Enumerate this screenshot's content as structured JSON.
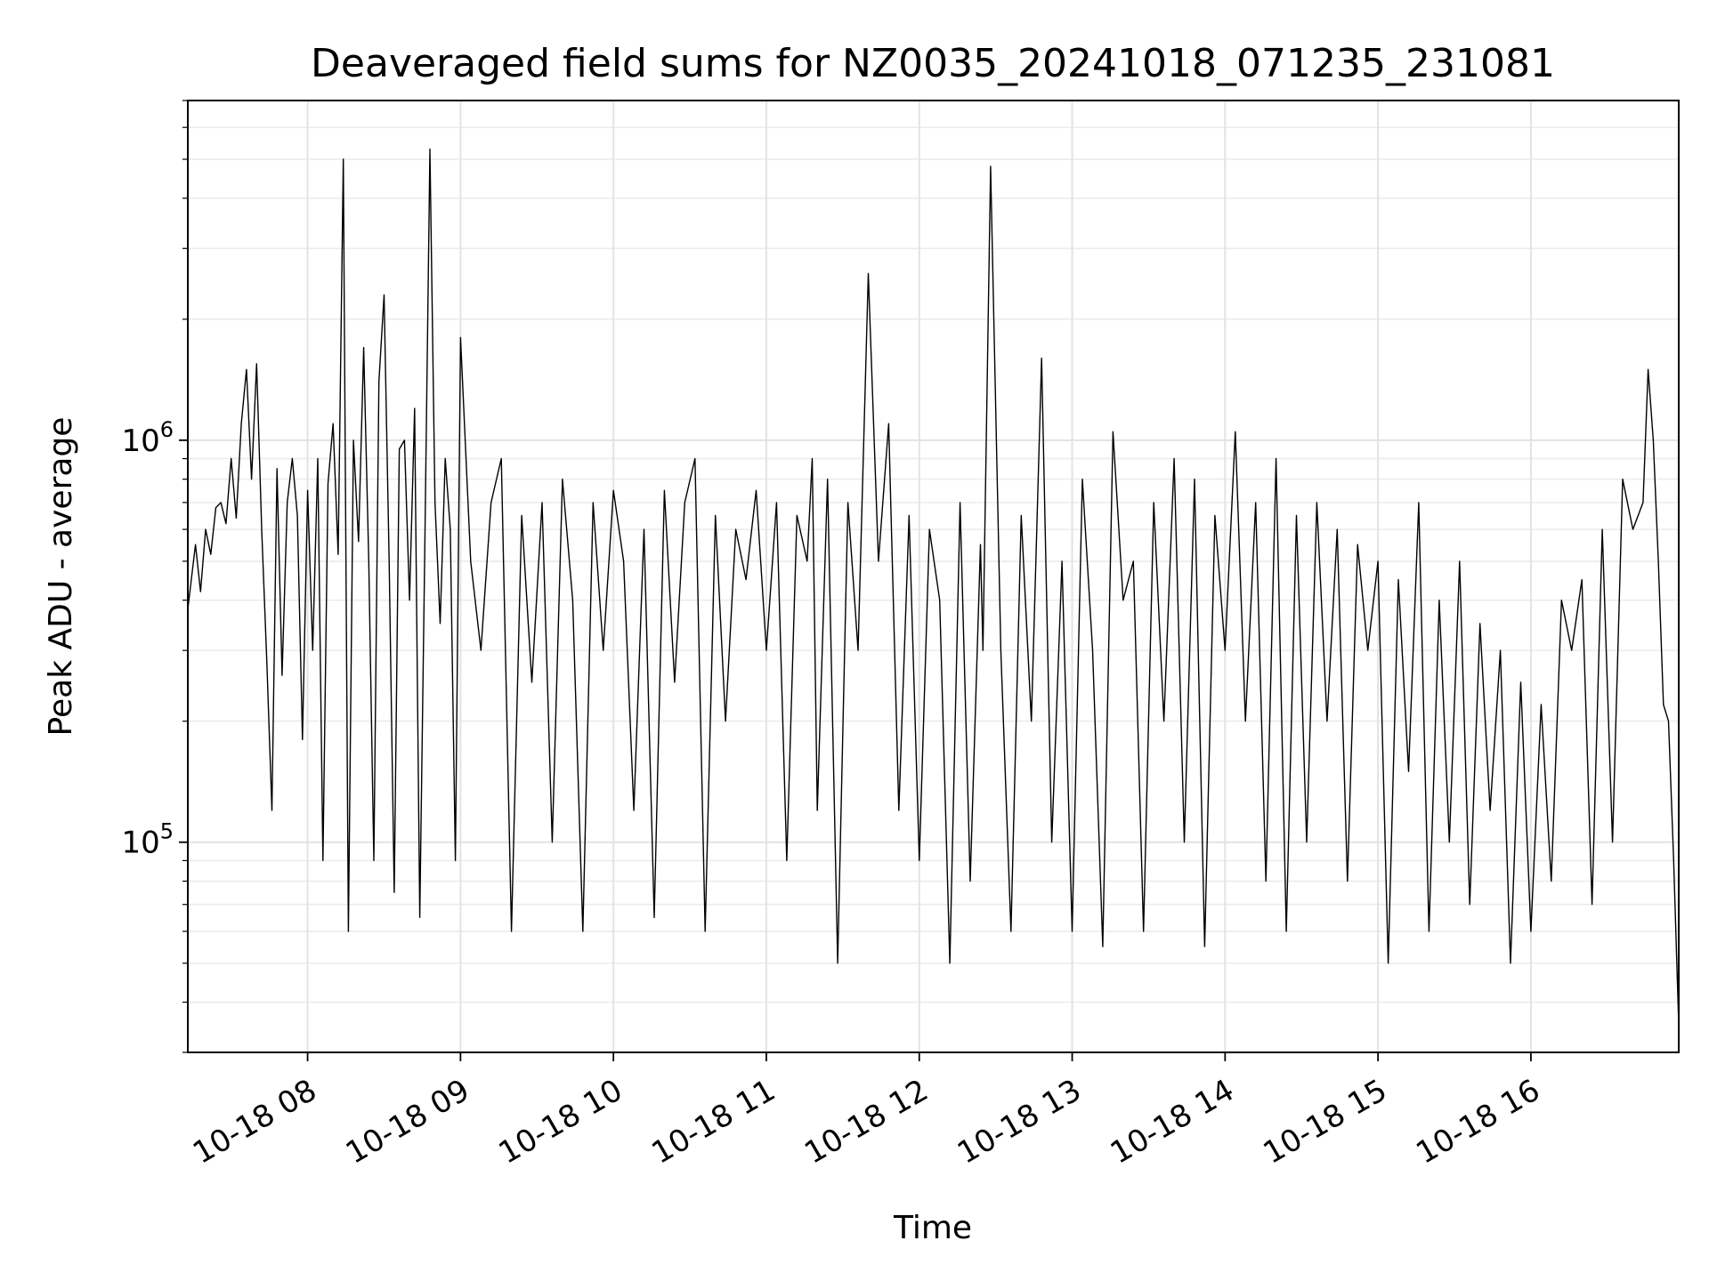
{
  "chart_data": {
    "type": "line",
    "title": "Deaveraged field sums for NZ0035_20241018_071235_231081",
    "xlabel": "Time",
    "ylabel": "Peak ADU - average",
    "yscale": "log",
    "xlim": [
      "2024-10-18T07:13",
      "2024-10-18T16:58"
    ],
    "ylim": [
      30000,
      7000000
    ],
    "grid": true,
    "x_ticks": [
      {
        "value": "2024-10-18T08:00",
        "label": "10-18 08"
      },
      {
        "value": "2024-10-18T09:00",
        "label": "10-18 09"
      },
      {
        "value": "2024-10-18T10:00",
        "label": "10-18 10"
      },
      {
        "value": "2024-10-18T11:00",
        "label": "10-18 11"
      },
      {
        "value": "2024-10-18T12:00",
        "label": "10-18 12"
      },
      {
        "value": "2024-10-18T13:00",
        "label": "10-18 13"
      },
      {
        "value": "2024-10-18T14:00",
        "label": "10-18 14"
      },
      {
        "value": "2024-10-18T15:00",
        "label": "10-18 15"
      },
      {
        "value": "2024-10-18T16:00",
        "label": "10-18 16"
      }
    ],
    "y_ticks": [
      {
        "value": 100000,
        "base": "10",
        "exp": "5"
      },
      {
        "value": 1000000,
        "base": "10",
        "exp": "6"
      }
    ],
    "line_color": "#000000",
    "series": [
      {
        "x": [
          "2024-10-18T07:13",
          "2024-10-18T07:16",
          "2024-10-18T07:18",
          "2024-10-18T07:20",
          "2024-10-18T07:22",
          "2024-10-18T07:24",
          "2024-10-18T07:26",
          "2024-10-18T07:28",
          "2024-10-18T07:30",
          "2024-10-18T07:32",
          "2024-10-18T07:34",
          "2024-10-18T07:36",
          "2024-10-18T07:38",
          "2024-10-18T07:40",
          "2024-10-18T07:42",
          "2024-10-18T07:44",
          "2024-10-18T07:46",
          "2024-10-18T07:48",
          "2024-10-18T07:50",
          "2024-10-18T07:52",
          "2024-10-18T07:54",
          "2024-10-18T07:56",
          "2024-10-18T07:58",
          "2024-10-18T08:00",
          "2024-10-18T08:02",
          "2024-10-18T08:04",
          "2024-10-18T08:06",
          "2024-10-18T08:08",
          "2024-10-18T08:10",
          "2024-10-18T08:12",
          "2024-10-18T08:14",
          "2024-10-18T08:16",
          "2024-10-18T08:18",
          "2024-10-18T08:20",
          "2024-10-18T08:22",
          "2024-10-18T08:24",
          "2024-10-18T08:26",
          "2024-10-18T08:28",
          "2024-10-18T08:30",
          "2024-10-18T08:32",
          "2024-10-18T08:34",
          "2024-10-18T08:36",
          "2024-10-18T08:38",
          "2024-10-18T08:40",
          "2024-10-18T08:42",
          "2024-10-18T08:44",
          "2024-10-18T08:46",
          "2024-10-18T08:48",
          "2024-10-18T08:50",
          "2024-10-18T08:52",
          "2024-10-18T08:54",
          "2024-10-18T08:56",
          "2024-10-18T08:58",
          "2024-10-18T09:00",
          "2024-10-18T09:04",
          "2024-10-18T09:08",
          "2024-10-18T09:12",
          "2024-10-18T09:16",
          "2024-10-18T09:20",
          "2024-10-18T09:24",
          "2024-10-18T09:28",
          "2024-10-18T09:32",
          "2024-10-18T09:36",
          "2024-10-18T09:40",
          "2024-10-18T09:44",
          "2024-10-18T09:48",
          "2024-10-18T09:52",
          "2024-10-18T09:56",
          "2024-10-18T10:00",
          "2024-10-18T10:04",
          "2024-10-18T10:08",
          "2024-10-18T10:12",
          "2024-10-18T10:16",
          "2024-10-18T10:20",
          "2024-10-18T10:24",
          "2024-10-18T10:28",
          "2024-10-18T10:32",
          "2024-10-18T10:36",
          "2024-10-18T10:40",
          "2024-10-18T10:44",
          "2024-10-18T10:48",
          "2024-10-18T10:52",
          "2024-10-18T10:56",
          "2024-10-18T11:00",
          "2024-10-18T11:04",
          "2024-10-18T11:08",
          "2024-10-18T11:12",
          "2024-10-18T11:16",
          "2024-10-18T11:18",
          "2024-10-18T11:20",
          "2024-10-18T11:24",
          "2024-10-18T11:28",
          "2024-10-18T11:32",
          "2024-10-18T11:36",
          "2024-10-18T11:40",
          "2024-10-18T11:44",
          "2024-10-18T11:48",
          "2024-10-18T11:52",
          "2024-10-18T11:56",
          "2024-10-18T12:00",
          "2024-10-18T12:04",
          "2024-10-18T12:08",
          "2024-10-18T12:12",
          "2024-10-18T12:16",
          "2024-10-18T12:20",
          "2024-10-18T12:24",
          "2024-10-18T12:25",
          "2024-10-18T12:28",
          "2024-10-18T12:32",
          "2024-10-18T12:36",
          "2024-10-18T12:40",
          "2024-10-18T12:44",
          "2024-10-18T12:48",
          "2024-10-18T12:52",
          "2024-10-18T12:56",
          "2024-10-18T13:00",
          "2024-10-18T13:04",
          "2024-10-18T13:08",
          "2024-10-18T13:12",
          "2024-10-18T13:16",
          "2024-10-18T13:20",
          "2024-10-18T13:24",
          "2024-10-18T13:28",
          "2024-10-18T13:32",
          "2024-10-18T13:36",
          "2024-10-18T13:40",
          "2024-10-18T13:44",
          "2024-10-18T13:48",
          "2024-10-18T13:52",
          "2024-10-18T13:56",
          "2024-10-18T14:00",
          "2024-10-18T14:04",
          "2024-10-18T14:08",
          "2024-10-18T14:12",
          "2024-10-18T14:16",
          "2024-10-18T14:20",
          "2024-10-18T14:24",
          "2024-10-18T14:28",
          "2024-10-18T14:32",
          "2024-10-18T14:36",
          "2024-10-18T14:40",
          "2024-10-18T14:44",
          "2024-10-18T14:48",
          "2024-10-18T14:52",
          "2024-10-18T14:56",
          "2024-10-18T15:00",
          "2024-10-18T15:04",
          "2024-10-18T15:08",
          "2024-10-18T15:12",
          "2024-10-18T15:16",
          "2024-10-18T15:20",
          "2024-10-18T15:24",
          "2024-10-18T15:28",
          "2024-10-18T15:32",
          "2024-10-18T15:36",
          "2024-10-18T15:40",
          "2024-10-18T15:44",
          "2024-10-18T15:48",
          "2024-10-18T15:52",
          "2024-10-18T15:56",
          "2024-10-18T16:00",
          "2024-10-18T16:04",
          "2024-10-18T16:08",
          "2024-10-18T16:12",
          "2024-10-18T16:16",
          "2024-10-18T16:20",
          "2024-10-18T16:24",
          "2024-10-18T16:28",
          "2024-10-18T16:32",
          "2024-10-18T16:36",
          "2024-10-18T16:40",
          "2024-10-18T16:44",
          "2024-10-18T16:46",
          "2024-10-18T16:48",
          "2024-10-18T16:50",
          "2024-10-18T16:52",
          "2024-10-18T16:54",
          "2024-10-18T16:56",
          "2024-10-18T16:58"
        ],
        "y": [
          380000,
          550000,
          420000,
          600000,
          520000,
          680000,
          700000,
          620000,
          900000,
          640000,
          1100000,
          1500000,
          800000,
          1550000,
          600000,
          280000,
          120000,
          850000,
          260000,
          700000,
          900000,
          650000,
          180000,
          750000,
          300000,
          900000,
          90000,
          780000,
          1100000,
          520000,
          5000000,
          60000,
          1000000,
          560000,
          1700000,
          500000,
          90000,
          1400000,
          2300000,
          500000,
          75000,
          950000,
          1000000,
          400000,
          1200000,
          65000,
          550000,
          5300000,
          700000,
          350000,
          900000,
          600000,
          90000,
          1800000,
          500000,
          300000,
          700000,
          900000,
          60000,
          650000,
          250000,
          700000,
          100000,
          800000,
          400000,
          60000,
          700000,
          300000,
          750000,
          500000,
          120000,
          600000,
          65000,
          750000,
          250000,
          700000,
          900000,
          60000,
          650000,
          200000,
          600000,
          450000,
          750000,
          300000,
          700000,
          90000,
          650000,
          500000,
          900000,
          120000,
          800000,
          50000,
          700000,
          300000,
          2600000,
          500000,
          1100000,
          120000,
          650000,
          90000,
          600000,
          400000,
          50000,
          700000,
          80000,
          550000,
          300000,
          4800000,
          300000,
          60000,
          650000,
          200000,
          1600000,
          100000,
          500000,
          60000,
          800000,
          300000,
          55000,
          1050000,
          400000,
          500000,
          60000,
          700000,
          200000,
          900000,
          100000,
          800000,
          55000,
          650000,
          300000,
          1050000,
          200000,
          700000,
          80000,
          900000,
          60000,
          650000,
          100000,
          700000,
          200000,
          600000,
          80000,
          550000,
          300000,
          500000,
          50000,
          450000,
          150000,
          700000,
          60000,
          400000,
          100000,
          500000,
          70000,
          350000,
          120000,
          300000,
          50000,
          250000,
          60000,
          220000,
          80000,
          400000,
          300000,
          450000,
          70000,
          600000,
          100000,
          800000,
          600000,
          700000,
          1500000,
          1000000,
          500000,
          220000,
          200000,
          90000,
          35000
        ]
      }
    ]
  }
}
